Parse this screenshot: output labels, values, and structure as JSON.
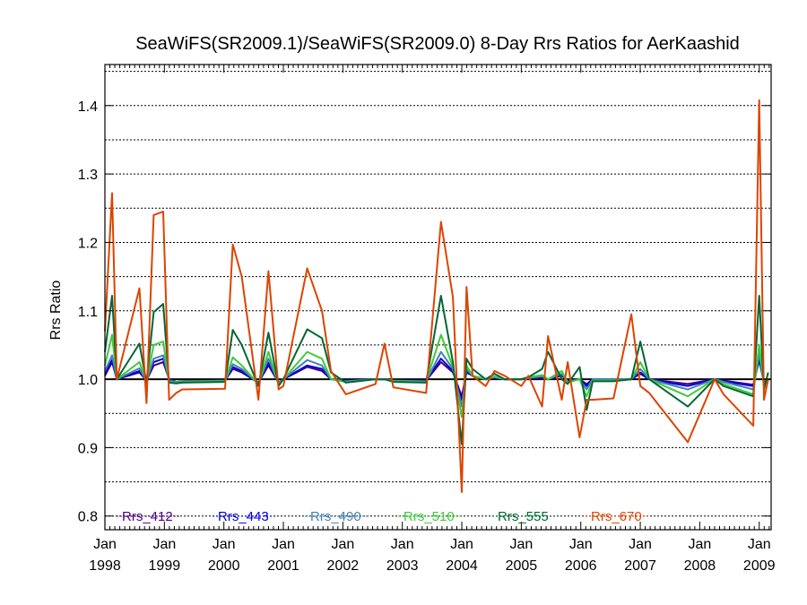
{
  "chart_data": {
    "type": "line",
    "title": "SeaWiFS(SR2009.1)/SeaWiFS(SR2009.0) 8-Day Rrs Ratios for AerKaashid",
    "xlabel": "",
    "ylabel": "Rrs Ratio",
    "xlim": [
      1998.0,
      2009.2
    ],
    "ylim": [
      0.78,
      1.46
    ],
    "y_ticks": [
      {
        "value": 0.8,
        "label": "0.8"
      },
      {
        "value": 0.9,
        "label": "0.9"
      },
      {
        "value": 1.0,
        "label": "1.0"
      },
      {
        "value": 1.1,
        "label": "1.1"
      },
      {
        "value": 1.2,
        "label": "1.2"
      },
      {
        "value": 1.3,
        "label": "1.3"
      },
      {
        "value": 1.4,
        "label": "1.4"
      }
    ],
    "y_grid": [
      0.8,
      0.85,
      0.9,
      0.95,
      1.05,
      1.1,
      1.15,
      1.2,
      1.25,
      1.3,
      1.35,
      1.4,
      1.45
    ],
    "x_ticks": [
      {
        "value": 1998,
        "top": "Jan",
        "bottom": "1998"
      },
      {
        "value": 1999,
        "top": "Jan",
        "bottom": "1999"
      },
      {
        "value": 2000,
        "top": "Jan",
        "bottom": "2000"
      },
      {
        "value": 2001,
        "top": "Jan",
        "bottom": "2001"
      },
      {
        "value": 2002,
        "top": "Jan",
        "bottom": "2002"
      },
      {
        "value": 2003,
        "top": "Jan",
        "bottom": "2003"
      },
      {
        "value": 2004,
        "top": "Jan",
        "bottom": "2004"
      },
      {
        "value": 2005,
        "top": "Jan",
        "bottom": "2005"
      },
      {
        "value": 2006,
        "top": "Jan",
        "bottom": "2006"
      },
      {
        "value": 2007,
        "top": "Jan",
        "bottom": "2007"
      },
      {
        "value": 2008,
        "top": "Jan",
        "bottom": "2008"
      },
      {
        "value": 2009,
        "top": "Jan",
        "bottom": "2009"
      }
    ],
    "reference_line": 1.0,
    "x": [
      1998.0,
      1998.12,
      1998.2,
      1998.58,
      1998.7,
      1998.82,
      1998.98,
      1999.08,
      1999.2,
      1999.3,
      2000.02,
      2000.15,
      2000.3,
      2000.58,
      2000.75,
      2000.92,
      2001.0,
      2001.4,
      2001.65,
      2001.8,
      2002.05,
      2002.55,
      2002.7,
      2002.85,
      2003.4,
      2003.65,
      2003.85,
      2004.0,
      2004.08,
      2004.18,
      2004.4,
      2004.55,
      2004.72,
      2005.0,
      2005.12,
      2005.35,
      2005.45,
      2005.68,
      2005.78,
      2005.98,
      2006.1,
      2006.2,
      2006.55,
      2006.85,
      2007.0,
      2007.15,
      2007.8,
      2008.25,
      2008.4,
      2008.9,
      2009.0,
      2009.08,
      2009.15
    ],
    "series": [
      {
        "name": "Rrs_412",
        "color": "#4b0082",
        "values": [
          1.005,
          1.025,
          1.0,
          1.01,
          0.998,
          1.02,
          1.025,
          1.0,
          0.996,
          0.997,
          0.998,
          1.015,
          1.01,
          0.995,
          1.02,
          0.995,
          1.0,
          1.018,
          1.012,
          1.0,
          0.998,
          1.0,
          1.0,
          0.998,
          0.998,
          1.025,
          1.01,
          0.975,
          1.01,
          1.005,
          1.0,
          1.002,
          1.0,
          1.0,
          1.001,
          1.002,
          1.0,
          1.005,
          0.998,
          1.0,
          0.993,
          1.0,
          1.0,
          1.0,
          1.008,
          1.0,
          0.993,
          1.0,
          0.998,
          0.992,
          1.028,
          0.995,
          1.0
        ]
      },
      {
        "name": "Rrs_443",
        "color": "#0000dd",
        "values": [
          1.008,
          1.028,
          1.0,
          1.012,
          0.998,
          1.025,
          1.03,
          1.0,
          0.996,
          0.997,
          0.998,
          1.018,
          1.012,
          0.995,
          1.024,
          0.995,
          1.0,
          1.02,
          1.015,
          1.0,
          0.998,
          1.0,
          1.0,
          0.998,
          0.998,
          1.03,
          1.012,
          0.97,
          1.012,
          1.005,
          1.0,
          1.002,
          1.0,
          1.0,
          1.001,
          1.003,
          1.0,
          1.006,
          0.997,
          1.0,
          0.99,
          1.0,
          1.0,
          1.0,
          1.01,
          1.0,
          0.99,
          1.0,
          0.997,
          0.99,
          1.032,
          0.995,
          1.0
        ]
      },
      {
        "name": "Rrs_490",
        "color": "#4682b4",
        "values": [
          1.012,
          1.035,
          1.0,
          1.016,
          0.997,
          1.03,
          1.035,
          0.998,
          0.996,
          0.997,
          0.998,
          1.022,
          1.015,
          0.994,
          1.03,
          0.994,
          1.0,
          1.028,
          1.02,
          1.0,
          0.997,
          1.0,
          1.0,
          0.998,
          0.997,
          1.04,
          1.015,
          0.96,
          1.015,
          1.005,
          1.0,
          1.003,
          1.0,
          1.0,
          1.002,
          1.004,
          1.0,
          1.008,
          0.996,
          1.0,
          0.985,
          1.0,
          1.0,
          1.0,
          1.015,
          1.0,
          0.985,
          1.0,
          0.996,
          0.985,
          1.038,
          0.993,
          1.0
        ]
      },
      {
        "name": "Rrs_510",
        "color": "#3ccc3c",
        "values": [
          1.02,
          1.065,
          1.0,
          1.025,
          0.997,
          1.05,
          1.055,
          0.996,
          0.995,
          0.996,
          0.997,
          1.032,
          1.02,
          0.993,
          1.04,
          0.993,
          1.0,
          1.04,
          1.03,
          1.0,
          0.996,
          1.0,
          1.0,
          0.997,
          0.996,
          1.065,
          1.018,
          0.945,
          1.02,
          1.005,
          1.0,
          1.004,
          1.0,
          1.0,
          1.003,
          1.006,
          1.0,
          1.012,
          0.995,
          1.0,
          0.975,
          0.998,
          0.998,
          1.0,
          1.025,
          1.0,
          0.975,
          1.0,
          0.993,
          0.978,
          1.05,
          0.99,
          1.0
        ]
      },
      {
        "name": "Rrs_555",
        "color": "#006633",
        "values": [
          1.04,
          1.122,
          1.0,
          1.052,
          0.995,
          1.098,
          1.11,
          0.995,
          0.994,
          0.995,
          0.996,
          1.072,
          1.05,
          0.99,
          1.068,
          0.99,
          1.0,
          1.073,
          1.06,
          1.01,
          0.995,
          1.0,
          1.0,
          0.996,
          0.995,
          1.122,
          1.025,
          0.905,
          1.03,
          1.015,
          1.0,
          1.008,
          1.0,
          1.0,
          1.003,
          1.015,
          1.04,
          1.0,
          0.993,
          1.018,
          0.955,
          0.997,
          0.997,
          1.0,
          1.055,
          1.0,
          0.96,
          1.0,
          0.99,
          0.975,
          1.122,
          0.985,
          1.01
        ]
      },
      {
        "name": "Rrs_670",
        "color": "#dd4400",
        "values": [
          1.07,
          1.272,
          1.0,
          1.133,
          0.965,
          1.24,
          1.245,
          0.97,
          0.98,
          0.985,
          0.986,
          1.197,
          1.15,
          0.97,
          1.158,
          0.985,
          0.99,
          1.162,
          1.1,
          1.012,
          0.978,
          0.993,
          1.052,
          0.988,
          0.98,
          1.23,
          1.12,
          0.835,
          1.135,
          1.005,
          0.99,
          1.012,
          1.005,
          0.99,
          1.005,
          0.96,
          1.063,
          0.97,
          1.025,
          0.915,
          0.97,
          0.97,
          0.972,
          1.095,
          0.99,
          0.98,
          0.908,
          1.0,
          0.978,
          0.932,
          1.408,
          0.97,
          1.0
        ]
      }
    ]
  }
}
